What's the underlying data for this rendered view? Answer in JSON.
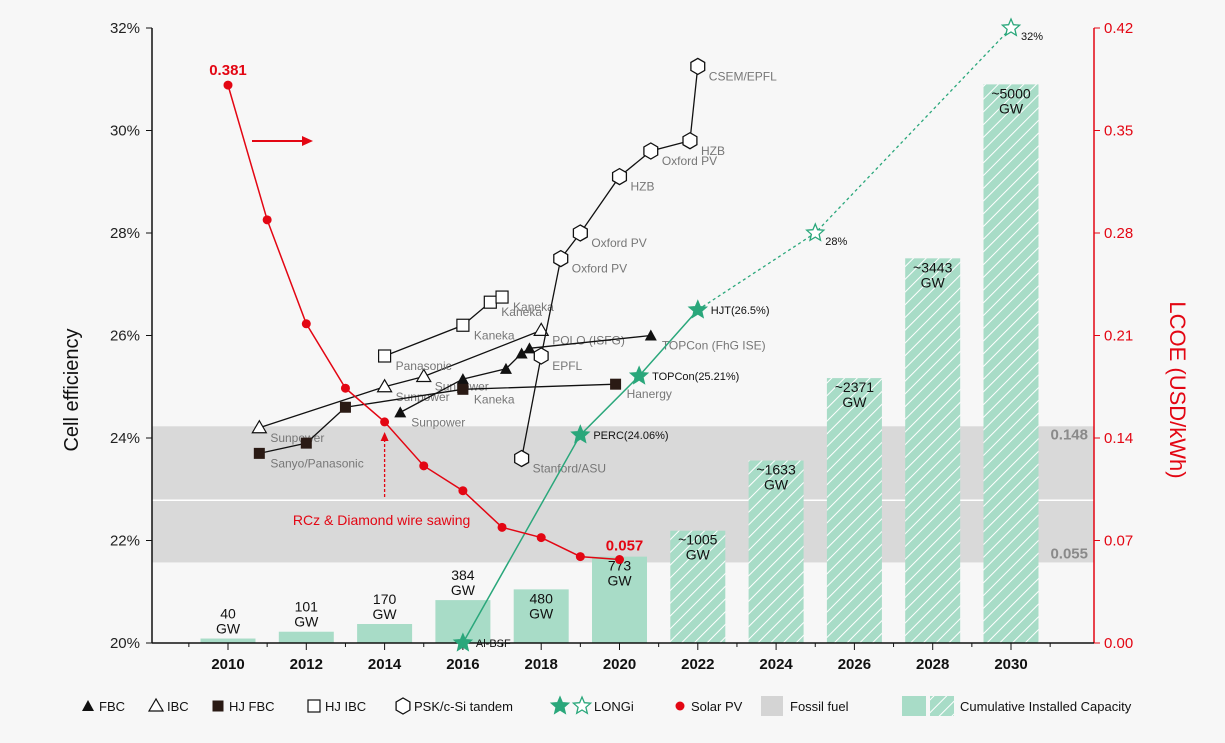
{
  "chart_data": {
    "type": "line+bar",
    "ylabel_left": "Cell efficiency",
    "ylabel_right": "LCOE (USD/kWh)",
    "x_ticks": [
      "2010",
      "2012",
      "2014",
      "2016",
      "2018",
      "2020",
      "2022",
      "2024",
      "2026",
      "2028",
      "2030"
    ],
    "yleft_ticks": [
      "20%",
      "22%",
      "24%",
      "26%",
      "28%",
      "30%",
      "32%"
    ],
    "yleft_range": [
      20,
      32
    ],
    "yright_ticks": [
      "0.00",
      "0.07",
      "0.14",
      "0.21",
      "0.28",
      "0.35",
      "0.42"
    ],
    "yright_range": [
      0,
      0.42
    ],
    "capacity_bars": [
      {
        "year": 2010,
        "gw": 40,
        "label": [
          "40",
          "GW"
        ],
        "projected": false
      },
      {
        "year": 2012,
        "gw": 101,
        "label": [
          "101",
          "GW"
        ],
        "projected": false
      },
      {
        "year": 2014,
        "gw": 170,
        "label": [
          "170",
          "GW"
        ],
        "projected": false
      },
      {
        "year": 2016,
        "gw": 384,
        "label": [
          "384",
          "GW"
        ],
        "projected": false
      },
      {
        "year": 2018,
        "gw": 480,
        "label": [
          "480",
          "GW"
        ],
        "projected": false
      },
      {
        "year": 2020,
        "gw": 773,
        "label": [
          "773",
          "GW"
        ],
        "projected": false
      },
      {
        "year": 2022,
        "gw": 1005,
        "label": [
          "~1005",
          "GW"
        ],
        "projected": true
      },
      {
        "year": 2024,
        "gw": 1633,
        "label": [
          "~1633",
          "GW"
        ],
        "projected": true
      },
      {
        "year": 2026,
        "gw": 2371,
        "label": [
          "~2371",
          "GW"
        ],
        "projected": true
      },
      {
        "year": 2028,
        "gw": 3443,
        "label": [
          "~3443",
          "GW"
        ],
        "projected": true
      },
      {
        "year": 2030,
        "gw": 5000,
        "label": [
          "~5000",
          "GW"
        ],
        "projected": true
      }
    ],
    "fossil_fuel_band": {
      "low": 0.055,
      "high": 0.148,
      "low_label": "0.055",
      "high_label": "0.148"
    },
    "solar_pv_lcoe": {
      "name": "Solar PV",
      "points": [
        [
          2010,
          0.381
        ],
        [
          2011,
          0.289
        ],
        [
          2012,
          0.218
        ],
        [
          2013,
          0.174
        ],
        [
          2014,
          0.151
        ],
        [
          2015,
          0.121
        ],
        [
          2016,
          0.104
        ],
        [
          2017,
          0.079
        ],
        [
          2018,
          0.072
        ],
        [
          2019,
          0.059
        ],
        [
          2020,
          0.057
        ]
      ],
      "start_label": "0.381",
      "end_label": "0.057"
    },
    "fbc": [
      {
        "x": 2014.4,
        "y": 24.5,
        "label": "Sunpower"
      },
      {
        "x": 2016,
        "y": 25.15,
        "label": ""
      },
      {
        "x": 2017.1,
        "y": 25.35,
        "label": ""
      },
      {
        "x": 2017.5,
        "y": 25.65,
        "label": ""
      },
      {
        "x": 2017.7,
        "y": 25.75,
        "label": ""
      },
      {
        "x": 2020.8,
        "y": 26.0,
        "label": "TOPCon (FhG ISE)"
      }
    ],
    "ibc": [
      {
        "x": 2010.8,
        "y": 24.2,
        "label": "Sunpower"
      },
      {
        "x": 2014,
        "y": 25.0,
        "label": "Sunpower"
      },
      {
        "x": 2015,
        "y": 25.2,
        "label": "Sunpower"
      },
      {
        "x": 2018,
        "y": 26.1,
        "label": "POLO (ISFG)"
      }
    ],
    "hj_fbc": [
      {
        "x": 2010.8,
        "y": 23.7,
        "label": "Sanyo/Panasonic"
      },
      {
        "x": 2012,
        "y": 23.9,
        "label": ""
      },
      {
        "x": 2013,
        "y": 24.6,
        "label": ""
      },
      {
        "x": 2016,
        "y": 24.95,
        "label": "Kaneka"
      },
      {
        "x": 2019.9,
        "y": 25.05,
        "label": "Hanergy"
      }
    ],
    "hj_ibc": [
      {
        "x": 2014,
        "y": 25.6,
        "label": "Panasonic"
      },
      {
        "x": 2016,
        "y": 26.2,
        "label": "Kaneka"
      },
      {
        "x": 2016.7,
        "y": 26.65,
        "label": "Kaneka"
      },
      {
        "x": 2017,
        "y": 26.75,
        "label": "Kaneka"
      }
    ],
    "tandem": [
      {
        "x": 2017.5,
        "y": 23.6,
        "label": "Stanford/ASU"
      },
      {
        "x": 2018,
        "y": 25.6,
        "label": "EPFL"
      },
      {
        "x": 2018.5,
        "y": 27.5,
        "label": "Oxford PV"
      },
      {
        "x": 2019,
        "y": 28.0,
        "label": "Oxford PV"
      },
      {
        "x": 2020,
        "y": 29.1,
        "label": "HZB"
      },
      {
        "x": 2020.8,
        "y": 29.6,
        "label": "Oxford PV"
      },
      {
        "x": 2021.8,
        "y": 29.8,
        "label": "HZB"
      },
      {
        "x": 2022,
        "y": 31.25,
        "label": "CSEM/EPFL"
      }
    ],
    "longi": [
      {
        "x": 2016,
        "y": 20.0,
        "label": "Al-BSF"
      },
      {
        "x": 2019,
        "y": 24.06,
        "label": "PERC(24.06%)"
      },
      {
        "x": 2020.5,
        "y": 25.21,
        "label": "TOPCon(25.21%)"
      },
      {
        "x": 2022,
        "y": 26.5,
        "label": "HJT(26.5%)"
      }
    ],
    "longi_projected": [
      {
        "x": 2025,
        "y": 28.0,
        "label": "28%"
      },
      {
        "x": 2030,
        "y": 32.0,
        "label": "32%"
      }
    ],
    "annotation": {
      "text": "RCz & Diamond wire sawing",
      "year": 2014
    }
  },
  "legend": [
    {
      "key": "fbc",
      "label": "FBC"
    },
    {
      "key": "ibc",
      "label": "IBC"
    },
    {
      "key": "hjfbc",
      "label": "HJ FBC"
    },
    {
      "key": "hjibc",
      "label": "HJ IBC"
    },
    {
      "key": "tandem",
      "label": "PSK/c-Si tandem"
    },
    {
      "key": "longi",
      "label": "LONGi"
    },
    {
      "key": "solar",
      "label": "Solar PV"
    },
    {
      "key": "fossil",
      "label": "Fossil fuel"
    },
    {
      "key": "capacity",
      "label": "Cumulative Installed Capacity"
    }
  ],
  "colors": {
    "solar": "#e30613",
    "longi": "#2aa77b",
    "capacity": "#a8dcc7",
    "fossil": "#d4d4d4",
    "axis": "#111"
  }
}
